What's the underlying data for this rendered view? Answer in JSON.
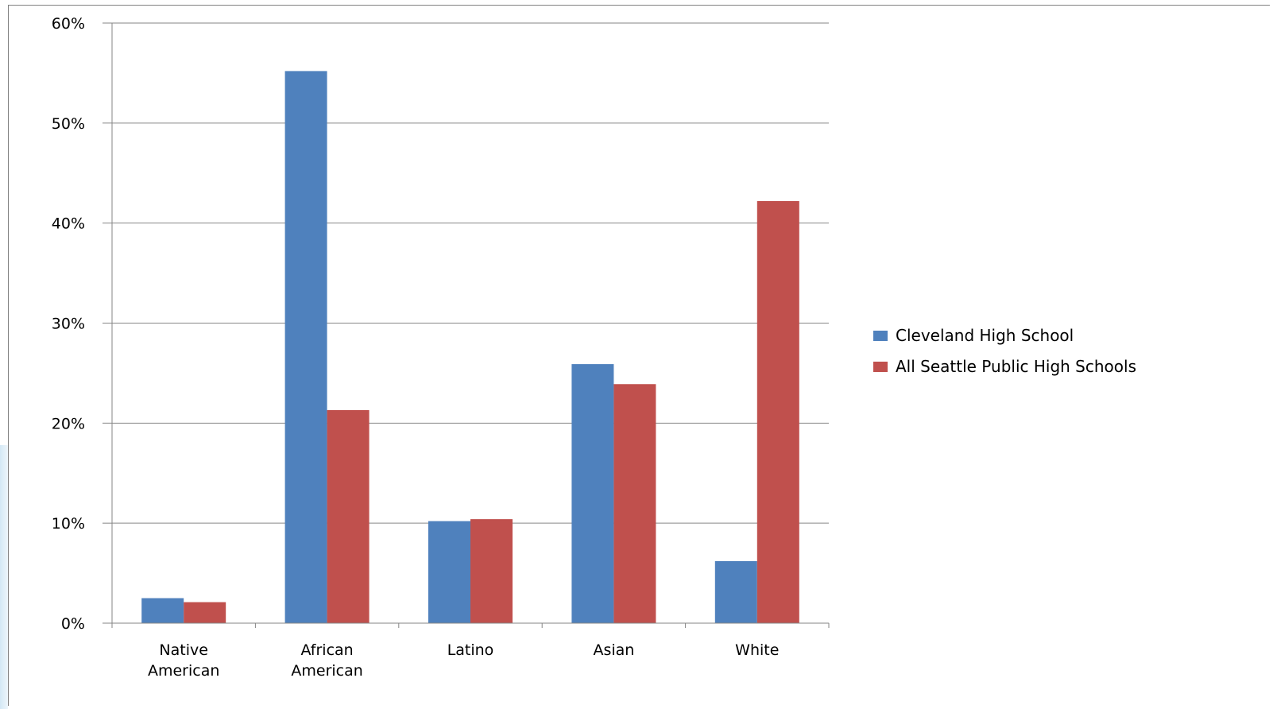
{
  "chart_data": {
    "type": "bar",
    "title": "",
    "xlabel": "",
    "ylabel": "",
    "ylim": [
      0,
      0.6
    ],
    "yticks": [
      {
        "value": 0,
        "label": "0%"
      },
      {
        "value": 0.1,
        "label": "10%"
      },
      {
        "value": 0.2,
        "label": "20%"
      },
      {
        "value": 0.3,
        "label": "30%"
      },
      {
        "value": 0.4,
        "label": "40%"
      },
      {
        "value": 0.5,
        "label": "50%"
      },
      {
        "value": 0.6,
        "label": "60%"
      }
    ],
    "categories": [
      [
        "Native",
        "American"
      ],
      [
        "African",
        "American"
      ],
      [
        "Latino"
      ],
      [
        "Asian"
      ],
      [
        "White"
      ]
    ],
    "series": [
      {
        "name": "Cleveland High School",
        "color": "#4F81BD",
        "values": [
          0.025,
          0.552,
          0.102,
          0.259,
          0.062
        ]
      },
      {
        "name": "All Seattle Public High Schools",
        "color": "#C0504D",
        "values": [
          0.021,
          0.213,
          0.104,
          0.239,
          0.422
        ]
      }
    ],
    "grid": true,
    "legend": "right"
  }
}
